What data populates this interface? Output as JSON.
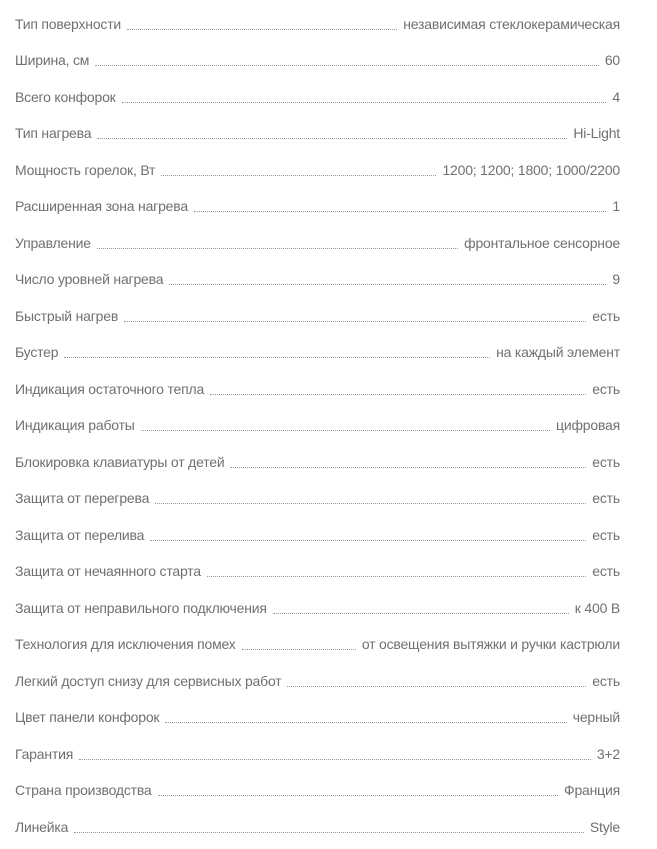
{
  "specs": [
    {
      "label": "Тип поверхности",
      "value": "независимая стеклокерамическая"
    },
    {
      "label": "Ширина, см",
      "value": "60"
    },
    {
      "label": "Всего конфорок",
      "value": "4"
    },
    {
      "label": "Тип нагрева",
      "value": "Hi-Light"
    },
    {
      "label": "Мощность горелок, Вт",
      "value": "1200; 1200; 1800; 1000/2200"
    },
    {
      "label": "Расширенная зона нагрева",
      "value": "1"
    },
    {
      "label": "Управление",
      "value": "фронтальное сенсорное"
    },
    {
      "label": "Число уровней нагрева",
      "value": "9"
    },
    {
      "label": "Быстрый нагрев",
      "value": "есть"
    },
    {
      "label": "Бустер",
      "value": "на каждый элемент"
    },
    {
      "label": "Индикация остаточного тепла",
      "value": "есть"
    },
    {
      "label": "Индикация работы",
      "value": "цифровая"
    },
    {
      "label": "Блокировка клавиатуры от детей",
      "value": "есть"
    },
    {
      "label": "Защита от перегрева",
      "value": "есть"
    },
    {
      "label": "Защита от перелива",
      "value": "есть"
    },
    {
      "label": "Защита от нечаянного старта",
      "value": "есть"
    },
    {
      "label": "Защита от неправильного подключения",
      "value": "к 400 В"
    },
    {
      "label": "Технология для исключения помех",
      "value": "от освещения вытяжки и ручки кастрюли"
    },
    {
      "label": "Легкий доступ снизу для сервисных работ",
      "value": "есть"
    },
    {
      "label": "Цвет панели конфорок",
      "value": "черный"
    },
    {
      "label": "Гарантия",
      "value": "3+2"
    },
    {
      "label": "Страна производства",
      "value": "Франция"
    },
    {
      "label": "Линейка",
      "value": "Style"
    }
  ]
}
